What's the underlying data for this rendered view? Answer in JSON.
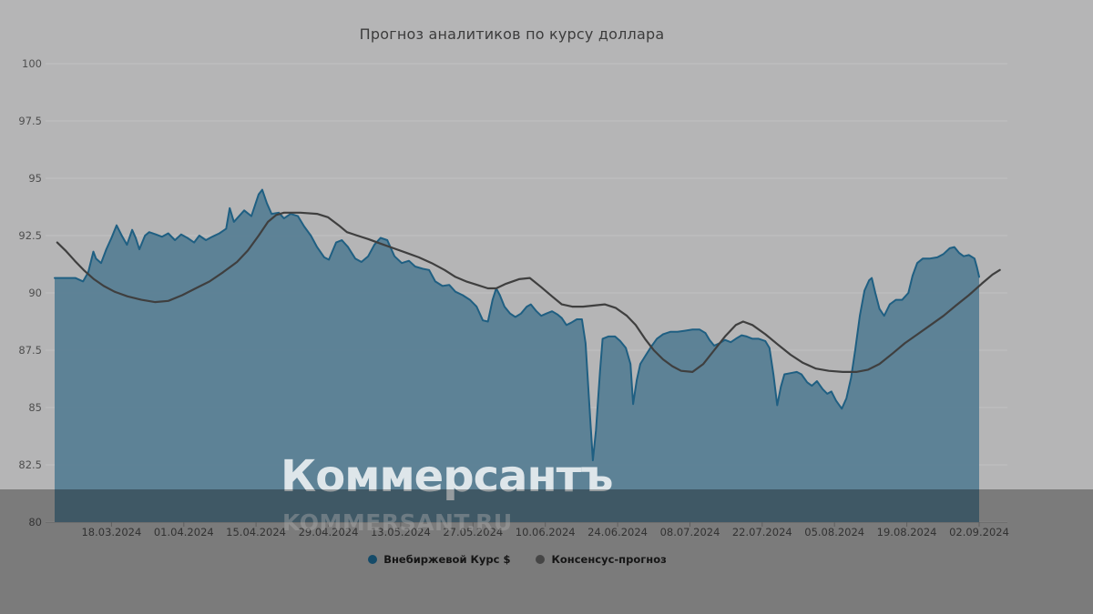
{
  "title": "Прогноз аналитиков по курсу доллара",
  "watermark": {
    "main": "Коммерсантъ",
    "sub": "KOMMERSANT.RU"
  },
  "legend": [
    {
      "label": "Внебиржевой Курс $",
      "color": "#1f6f9b"
    },
    {
      "label": "Консенсус-прогноз",
      "color": "#666666"
    }
  ],
  "colors": {
    "background": "#b5b5b6",
    "gridline": "#c1c1c2",
    "axis_line": "#a3a3a3",
    "tick": "#8c8c8c",
    "y_label": "#4f4f4f",
    "x_label": "#4a4a4a",
    "area_fill": "#567e93",
    "area_line": "#1f5f82",
    "consensus_line": "#3f3f3f"
  },
  "chart_data": {
    "type": "area",
    "title": "Прогноз аналитиков по курсу доллара",
    "grid": true,
    "legend_position": "bottom-center",
    "y_axis": {
      "min": 80,
      "max": 100,
      "ticks": [
        80,
        82.5,
        85,
        87.5,
        90,
        92.5,
        95,
        97.5,
        100
      ]
    },
    "x_axis": {
      "start_date": "07.03.2024",
      "days_total": 183,
      "tick_labels": [
        "18.03.2024",
        "01.04.2024",
        "15.04.2024",
        "29.04.2024",
        "13.05.2024",
        "27.05.2024",
        "10.06.2024",
        "24.06.2024",
        "08.07.2024",
        "22.07.2024",
        "05.08.2024",
        "19.08.2024",
        "02.09.2024"
      ],
      "tick_days": [
        11,
        25,
        39,
        53,
        67,
        81,
        95,
        109,
        123,
        137,
        151,
        165,
        179
      ]
    },
    "series": [
      {
        "name": "Внебиржевой Курс $",
        "render": "area",
        "points": [
          [
            0,
            90.65
          ],
          [
            4,
            90.65
          ],
          [
            5.5,
            90.5
          ],
          [
            6.5,
            90.9
          ],
          [
            7.5,
            91.8
          ],
          [
            8,
            91.5
          ],
          [
            9,
            91.3
          ],
          [
            10,
            91.9
          ],
          [
            11,
            92.4
          ],
          [
            12,
            92.95
          ],
          [
            13,
            92.5
          ],
          [
            14,
            92.1
          ],
          [
            15,
            92.75
          ],
          [
            15.7,
            92.4
          ],
          [
            16.4,
            91.9
          ],
          [
            17.5,
            92.5
          ],
          [
            18.3,
            92.65
          ],
          [
            19.6,
            92.55
          ],
          [
            20.8,
            92.45
          ],
          [
            22,
            92.6
          ],
          [
            23.3,
            92.3
          ],
          [
            24.5,
            92.55
          ],
          [
            25.7,
            92.4
          ],
          [
            27,
            92.2
          ],
          [
            28,
            92.5
          ],
          [
            29.3,
            92.3
          ],
          [
            30.5,
            92.45
          ],
          [
            31.9,
            92.6
          ],
          [
            33.2,
            92.8
          ],
          [
            33.9,
            93.7
          ],
          [
            34.7,
            93.1
          ],
          [
            36.7,
            93.6
          ],
          [
            38.1,
            93.35
          ],
          [
            39.5,
            94.3
          ],
          [
            40.2,
            94.5
          ],
          [
            41.1,
            93.9
          ],
          [
            42,
            93.45
          ],
          [
            43.4,
            93.5
          ],
          [
            44.4,
            93.25
          ],
          [
            45.7,
            93.45
          ],
          [
            47.1,
            93.35
          ],
          [
            48.3,
            92.9
          ],
          [
            49.6,
            92.5
          ],
          [
            50.8,
            92.0
          ],
          [
            52.2,
            91.55
          ],
          [
            53.1,
            91.45
          ],
          [
            54.5,
            92.2
          ],
          [
            55.6,
            92.3
          ],
          [
            56.8,
            92.0
          ],
          [
            58.2,
            91.5
          ],
          [
            59.4,
            91.35
          ],
          [
            60.7,
            91.6
          ],
          [
            61.9,
            92.1
          ],
          [
            63.1,
            92.4
          ],
          [
            64.4,
            92.3
          ],
          [
            65.8,
            91.6
          ],
          [
            67.2,
            91.3
          ],
          [
            68.6,
            91.4
          ],
          [
            69.8,
            91.15
          ],
          [
            71.3,
            91.05
          ],
          [
            72.5,
            91.0
          ],
          [
            73.7,
            90.5
          ],
          [
            75.1,
            90.3
          ],
          [
            76.4,
            90.35
          ],
          [
            77.6,
            90.05
          ],
          [
            79,
            89.9
          ],
          [
            80.4,
            89.7
          ],
          [
            81.7,
            89.4
          ],
          [
            82.9,
            88.8
          ],
          [
            83.9,
            88.75
          ],
          [
            84.8,
            89.7
          ],
          [
            85.5,
            90.2
          ],
          [
            86.2,
            89.9
          ],
          [
            87.1,
            89.4
          ],
          [
            88.2,
            89.1
          ],
          [
            89.2,
            88.95
          ],
          [
            90.3,
            89.1
          ],
          [
            91.4,
            89.4
          ],
          [
            92.2,
            89.5
          ],
          [
            93.3,
            89.2
          ],
          [
            94.2,
            89.0
          ],
          [
            95.2,
            89.1
          ],
          [
            96.3,
            89.2
          ],
          [
            97.4,
            89.05
          ],
          [
            98.2,
            88.9
          ],
          [
            99.1,
            88.6
          ],
          [
            100,
            88.7
          ],
          [
            101.1,
            88.85
          ],
          [
            102.1,
            88.85
          ],
          [
            102.8,
            87.8
          ],
          [
            103.7,
            84.5
          ],
          [
            104.2,
            82.7
          ],
          [
            104.8,
            84.0
          ],
          [
            105.6,
            86.6
          ],
          [
            106.1,
            88.0
          ],
          [
            107.2,
            88.1
          ],
          [
            108.5,
            88.1
          ],
          [
            109.5,
            87.9
          ],
          [
            110.6,
            87.6
          ],
          [
            111.5,
            86.9
          ],
          [
            112,
            85.15
          ],
          [
            112.7,
            86.2
          ],
          [
            113.4,
            86.9
          ],
          [
            114.5,
            87.3
          ],
          [
            115.5,
            87.65
          ],
          [
            116.6,
            88.0
          ],
          [
            117.8,
            88.2
          ],
          [
            119.2,
            88.3
          ],
          [
            120.6,
            88.3
          ],
          [
            122,
            88.35
          ],
          [
            123.5,
            88.4
          ],
          [
            124.9,
            88.4
          ],
          [
            126,
            88.25
          ],
          [
            126.8,
            87.95
          ],
          [
            127.7,
            87.7
          ],
          [
            128.7,
            87.8
          ],
          [
            129.8,
            87.95
          ],
          [
            130.9,
            87.85
          ],
          [
            131.9,
            88.0
          ],
          [
            133,
            88.15
          ],
          [
            134,
            88.1
          ],
          [
            135.1,
            88.0
          ],
          [
            136.3,
            88.0
          ],
          [
            137.6,
            87.9
          ],
          [
            138.4,
            87.6
          ],
          [
            139.2,
            86.4
          ],
          [
            139.9,
            85.1
          ],
          [
            140.6,
            85.9
          ],
          [
            141.3,
            86.45
          ],
          [
            142.5,
            86.5
          ],
          [
            143.7,
            86.55
          ],
          [
            144.6,
            86.45
          ],
          [
            145.7,
            86.1
          ],
          [
            146.6,
            85.95
          ],
          [
            147.6,
            86.15
          ],
          [
            148.7,
            85.8
          ],
          [
            149.6,
            85.6
          ],
          [
            150.4,
            85.7
          ],
          [
            151.3,
            85.3
          ],
          [
            152.4,
            84.95
          ],
          [
            153.3,
            85.4
          ],
          [
            154.2,
            86.3
          ],
          [
            155,
            87.5
          ],
          [
            155.9,
            89.0
          ],
          [
            156.8,
            90.1
          ],
          [
            157.7,
            90.55
          ],
          [
            158.2,
            90.65
          ],
          [
            158.9,
            90.0
          ],
          [
            159.7,
            89.3
          ],
          [
            160.6,
            89.0
          ],
          [
            161.7,
            89.5
          ],
          [
            162.9,
            89.7
          ],
          [
            164.1,
            89.7
          ],
          [
            165.3,
            90.0
          ],
          [
            166.1,
            90.75
          ],
          [
            167,
            91.3
          ],
          [
            168.1,
            91.5
          ],
          [
            169.5,
            91.5
          ],
          [
            170.9,
            91.55
          ],
          [
            172.1,
            91.7
          ],
          [
            173.3,
            91.95
          ],
          [
            174.2,
            92.0
          ],
          [
            175.1,
            91.75
          ],
          [
            176,
            91.6
          ],
          [
            177,
            91.65
          ],
          [
            178.1,
            91.5
          ],
          [
            178.6,
            91.1
          ],
          [
            179,
            90.7
          ]
        ]
      },
      {
        "name": "Консенсус-прогноз",
        "render": "line",
        "points": [
          [
            0.5,
            92.2
          ],
          [
            2.1,
            91.85
          ],
          [
            3.9,
            91.4
          ],
          [
            5.6,
            91.0
          ],
          [
            7.6,
            90.6
          ],
          [
            9.5,
            90.3
          ],
          [
            11.6,
            90.05
          ],
          [
            14.1,
            89.85
          ],
          [
            16.8,
            89.7
          ],
          [
            19.4,
            89.6
          ],
          [
            22,
            89.65
          ],
          [
            24.7,
            89.9
          ],
          [
            27.3,
            90.2
          ],
          [
            30,
            90.5
          ],
          [
            32.6,
            90.9
          ],
          [
            35.3,
            91.35
          ],
          [
            37.4,
            91.85
          ],
          [
            39.5,
            92.5
          ],
          [
            41.3,
            93.1
          ],
          [
            42.9,
            93.4
          ],
          [
            44.4,
            93.5
          ],
          [
            47.6,
            93.5
          ],
          [
            50.8,
            93.45
          ],
          [
            52.9,
            93.3
          ],
          [
            55,
            92.95
          ],
          [
            56.6,
            92.65
          ],
          [
            58.6,
            92.5
          ],
          [
            60.7,
            92.35
          ],
          [
            63.1,
            92.15
          ],
          [
            65.6,
            91.95
          ],
          [
            68.1,
            91.75
          ],
          [
            70.5,
            91.55
          ],
          [
            73,
            91.3
          ],
          [
            75.5,
            91.0
          ],
          [
            77.6,
            90.7
          ],
          [
            79.7,
            90.5
          ],
          [
            81.8,
            90.35
          ],
          [
            83.9,
            90.2
          ],
          [
            85.5,
            90.2
          ],
          [
            87.4,
            90.4
          ],
          [
            89.9,
            90.6
          ],
          [
            92,
            90.65
          ],
          [
            94.2,
            90.25
          ],
          [
            96.3,
            89.85
          ],
          [
            98.2,
            89.5
          ],
          [
            100.2,
            89.4
          ],
          [
            102.3,
            89.4
          ],
          [
            104.4,
            89.45
          ],
          [
            106.5,
            89.5
          ],
          [
            108.6,
            89.35
          ],
          [
            110.8,
            89.0
          ],
          [
            112.5,
            88.6
          ],
          [
            114.3,
            88.0
          ],
          [
            116,
            87.5
          ],
          [
            117.8,
            87.1
          ],
          [
            119.6,
            86.8
          ],
          [
            121.3,
            86.6
          ],
          [
            123.5,
            86.55
          ],
          [
            125.6,
            86.9
          ],
          [
            127.7,
            87.5
          ],
          [
            129.8,
            88.1
          ],
          [
            131.9,
            88.6
          ],
          [
            133.3,
            88.75
          ],
          [
            135.1,
            88.6
          ],
          [
            137.6,
            88.2
          ],
          [
            140,
            87.75
          ],
          [
            142.5,
            87.3
          ],
          [
            144.9,
            86.95
          ],
          [
            147.4,
            86.7
          ],
          [
            149.9,
            86.6
          ],
          [
            152.6,
            86.55
          ],
          [
            155.2,
            86.55
          ],
          [
            157.5,
            86.65
          ],
          [
            159.7,
            86.9
          ],
          [
            162.2,
            87.35
          ],
          [
            164.6,
            87.8
          ],
          [
            167.1,
            88.2
          ],
          [
            169.6,
            88.6
          ],
          [
            172.1,
            89.0
          ],
          [
            174.5,
            89.45
          ],
          [
            177,
            89.9
          ],
          [
            179.5,
            90.4
          ],
          [
            181.6,
            90.8
          ],
          [
            183,
            91.0
          ]
        ]
      }
    ]
  }
}
